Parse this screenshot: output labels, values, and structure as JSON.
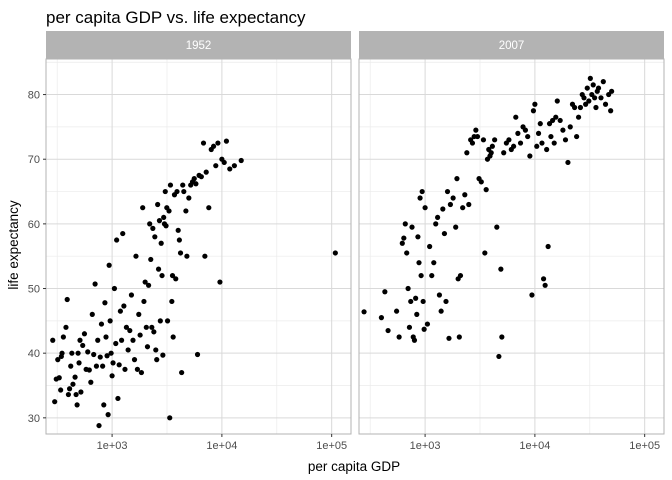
{
  "chart_data": {
    "type": "scatter",
    "title": "per capita GDP vs. life expectancy",
    "xlabel": "per capita GDP",
    "ylabel": "life expectancy",
    "x_scale": "log10",
    "xlim": [
      250,
      150000
    ],
    "ylim": [
      27.5,
      85.5
    ],
    "x_ticks": [
      1000,
      10000,
      100000
    ],
    "x_tick_labels": [
      "1e+03",
      "1e+04",
      "1e+05"
    ],
    "y_ticks": [
      30,
      40,
      50,
      60,
      70,
      80
    ],
    "y_tick_labels": [
      "30",
      "40",
      "50",
      "60",
      "70",
      "80"
    ],
    "grid": true,
    "point_color": "#000000",
    "panels": [
      {
        "name": "1952",
        "points": [
          [
            288,
            42.0
          ],
          [
            300,
            32.5
          ],
          [
            310,
            36.0
          ],
          [
            320,
            39.0
          ],
          [
            330,
            36.2
          ],
          [
            340,
            34.3
          ],
          [
            345,
            39.5
          ],
          [
            350,
            40.0
          ],
          [
            360,
            42.5
          ],
          [
            380,
            44.0
          ],
          [
            390,
            48.3
          ],
          [
            400,
            33.6
          ],
          [
            410,
            34.5
          ],
          [
            420,
            38.0
          ],
          [
            430,
            40.0
          ],
          [
            440,
            35.2
          ],
          [
            460,
            36.3
          ],
          [
            470,
            33.6
          ],
          [
            480,
            32.0
          ],
          [
            490,
            40.0
          ],
          [
            500,
            38.5
          ],
          [
            510,
            42.0
          ],
          [
            520,
            34.0
          ],
          [
            540,
            41.2
          ],
          [
            560,
            43.0
          ],
          [
            580,
            37.5
          ],
          [
            600,
            40.2
          ],
          [
            620,
            37.4
          ],
          [
            640,
            35.5
          ],
          [
            660,
            46.0
          ],
          [
            680,
            39.8
          ],
          [
            700,
            50.7
          ],
          [
            720,
            38.0
          ],
          [
            740,
            42.0
          ],
          [
            760,
            28.8
          ],
          [
            780,
            39.4
          ],
          [
            800,
            44.5
          ],
          [
            820,
            38.0
          ],
          [
            840,
            32.0
          ],
          [
            860,
            47.8
          ],
          [
            880,
            42.5
          ],
          [
            900,
            39.6
          ],
          [
            920,
            30.5
          ],
          [
            940,
            53.6
          ],
          [
            960,
            45.0
          ],
          [
            980,
            40.0
          ],
          [
            1000,
            36.5
          ],
          [
            1020,
            38.5
          ],
          [
            1050,
            50.0
          ],
          [
            1080,
            41.5
          ],
          [
            1100,
            57.5
          ],
          [
            1130,
            33.0
          ],
          [
            1160,
            38.2
          ],
          [
            1190,
            46.5
          ],
          [
            1220,
            42.0
          ],
          [
            1250,
            58.5
          ],
          [
            1280,
            47.3
          ],
          [
            1310,
            37.5
          ],
          [
            1350,
            44.0
          ],
          [
            1400,
            40.5
          ],
          [
            1450,
            43.5
          ],
          [
            1500,
            49.0
          ],
          [
            1550,
            42.0
          ],
          [
            1600,
            39.0
          ],
          [
            1650,
            55.0
          ],
          [
            1700,
            37.5
          ],
          [
            1750,
            46.0
          ],
          [
            1800,
            42.8
          ],
          [
            1850,
            37.0
          ],
          [
            1900,
            62.5
          ],
          [
            1950,
            48.0
          ],
          [
            2000,
            51.0
          ],
          [
            2050,
            44.0
          ],
          [
            2100,
            41.0
          ],
          [
            2150,
            50.5
          ],
          [
            2200,
            60.0
          ],
          [
            2250,
            54.5
          ],
          [
            2300,
            44.0
          ],
          [
            2350,
            59.3
          ],
          [
            2400,
            43.3
          ],
          [
            2450,
            58.0
          ],
          [
            2500,
            40.5
          ],
          [
            2550,
            39.0
          ],
          [
            2600,
            63.0
          ],
          [
            2650,
            53.0
          ],
          [
            2700,
            60.5
          ],
          [
            2750,
            45.0
          ],
          [
            2800,
            57.0
          ],
          [
            2850,
            52.0
          ],
          [
            2900,
            39.7
          ],
          [
            2950,
            61.0
          ],
          [
            3000,
            60.0
          ],
          [
            3050,
            65.0
          ],
          [
            3100,
            59.7
          ],
          [
            3150,
            62.5
          ],
          [
            3200,
            45.0
          ],
          [
            3300,
            62.0
          ],
          [
            3350,
            30.0
          ],
          [
            3400,
            66.0
          ],
          [
            3500,
            48.0
          ],
          [
            3550,
            52.0
          ],
          [
            3600,
            42.5
          ],
          [
            3700,
            64.5
          ],
          [
            3800,
            51.5
          ],
          [
            3900,
            65.0
          ],
          [
            4000,
            59.0
          ],
          [
            4100,
            57.5
          ],
          [
            4200,
            55.5
          ],
          [
            4300,
            37.0
          ],
          [
            4400,
            66.0
          ],
          [
            4500,
            65.0
          ],
          [
            4700,
            62.0
          ],
          [
            4800,
            55.0
          ],
          [
            5000,
            64.0
          ],
          [
            5200,
            66.0
          ],
          [
            5400,
            66.5
          ],
          [
            5600,
            67.0
          ],
          [
            5800,
            66.2
          ],
          [
            6000,
            39.8
          ],
          [
            6200,
            67.5
          ],
          [
            6500,
            67.3
          ],
          [
            6800,
            72.5
          ],
          [
            7000,
            55.0
          ],
          [
            7200,
            68.0
          ],
          [
            7600,
            62.5
          ],
          [
            8000,
            71.5
          ],
          [
            8400,
            72.0
          ],
          [
            8800,
            69.0
          ],
          [
            9200,
            72.5
          ],
          [
            9600,
            51.0
          ],
          [
            10000,
            70.0
          ],
          [
            10500,
            69.5
          ],
          [
            11000,
            72.8
          ],
          [
            11800,
            68.5
          ],
          [
            13000,
            69.0
          ],
          [
            15000,
            69.8
          ],
          [
            108000,
            55.5
          ]
        ]
      },
      {
        "name": "2007",
        "points": [
          [
            278,
            46.4
          ],
          [
            400,
            45.5
          ],
          [
            430,
            49.5
          ],
          [
            460,
            43.5
          ],
          [
            550,
            46.5
          ],
          [
            580,
            42.5
          ],
          [
            620,
            57.0
          ],
          [
            640,
            57.8
          ],
          [
            660,
            60.0
          ],
          [
            680,
            55.5
          ],
          [
            700,
            50.0
          ],
          [
            720,
            44.0
          ],
          [
            740,
            48.0
          ],
          [
            760,
            59.5
          ],
          [
            780,
            42.5
          ],
          [
            800,
            42.0
          ],
          [
            820,
            48.5
          ],
          [
            840,
            46.0
          ],
          [
            860,
            58.0
          ],
          [
            880,
            54.0
          ],
          [
            900,
            64.0
          ],
          [
            920,
            52.0
          ],
          [
            940,
            65.0
          ],
          [
            960,
            48.0
          ],
          [
            980,
            43.7
          ],
          [
            1000,
            62.5
          ],
          [
            1050,
            44.5
          ],
          [
            1100,
            56.5
          ],
          [
            1150,
            52.0
          ],
          [
            1200,
            54.0
          ],
          [
            1250,
            60.0
          ],
          [
            1300,
            61.0
          ],
          [
            1350,
            49.0
          ],
          [
            1400,
            46.5
          ],
          [
            1450,
            62.3
          ],
          [
            1500,
            58.5
          ],
          [
            1550,
            48.0
          ],
          [
            1600,
            65.0
          ],
          [
            1650,
            42.3
          ],
          [
            1700,
            63.0
          ],
          [
            1800,
            64.0
          ],
          [
            1900,
            59.5
          ],
          [
            1950,
            67.0
          ],
          [
            2000,
            51.5
          ],
          [
            2050,
            42.5
          ],
          [
            2100,
            52.0
          ],
          [
            2200,
            62.5
          ],
          [
            2300,
            64.5
          ],
          [
            2400,
            71.0
          ],
          [
            2500,
            63.0
          ],
          [
            2600,
            73.0
          ],
          [
            2700,
            72.5
          ],
          [
            2800,
            73.5
          ],
          [
            2900,
            74.5
          ],
          [
            3000,
            73.5
          ],
          [
            3100,
            67.0
          ],
          [
            3250,
            66.5
          ],
          [
            3400,
            73.0
          ],
          [
            3500,
            55.5
          ],
          [
            3600,
            65.3
          ],
          [
            3700,
            70.0
          ],
          [
            3800,
            71.5
          ],
          [
            3900,
            70.5
          ],
          [
            4000,
            71.0
          ],
          [
            4100,
            72.0
          ],
          [
            4300,
            73.0
          ],
          [
            4500,
            59.5
          ],
          [
            4700,
            39.5
          ],
          [
            4900,
            53.0
          ],
          [
            5000,
            42.5
          ],
          [
            5200,
            71.0
          ],
          [
            5500,
            72.5
          ],
          [
            5800,
            73.0
          ],
          [
            6100,
            71.5
          ],
          [
            6400,
            72.0
          ],
          [
            6700,
            76.5
          ],
          [
            7000,
            74.0
          ],
          [
            7400,
            72.5
          ],
          [
            7800,
            75.0
          ],
          [
            8200,
            74.5
          ],
          [
            8600,
            73.5
          ],
          [
            9000,
            70.5
          ],
          [
            9400,
            49.0
          ],
          [
            9700,
            77.5
          ],
          [
            10000,
            78.5
          ],
          [
            10400,
            72.0
          ],
          [
            10800,
            74.0
          ],
          [
            11200,
            75.5
          ],
          [
            11600,
            72.5
          ],
          [
            12000,
            51.5
          ],
          [
            12400,
            50.5
          ],
          [
            12800,
            71.5
          ],
          [
            13200,
            56.5
          ],
          [
            13600,
            75.5
          ],
          [
            14000,
            73.5
          ],
          [
            14500,
            76.0
          ],
          [
            15000,
            72.5
          ],
          [
            15500,
            76.5
          ],
          [
            16000,
            79.0
          ],
          [
            17000,
            76.0
          ],
          [
            18000,
            74.5
          ],
          [
            19000,
            73.0
          ],
          [
            20000,
            69.5
          ],
          [
            21000,
            75.0
          ],
          [
            22000,
            78.5
          ],
          [
            23000,
            78.0
          ],
          [
            24000,
            73.5
          ],
          [
            25000,
            76.5
          ],
          [
            26000,
            78.0
          ],
          [
            27000,
            80.0
          ],
          [
            28000,
            79.5
          ],
          [
            29000,
            78.5
          ],
          [
            30000,
            81.0
          ],
          [
            31000,
            79.0
          ],
          [
            32000,
            82.5
          ],
          [
            33000,
            80.0
          ],
          [
            34000,
            81.5
          ],
          [
            35000,
            79.5
          ],
          [
            36000,
            78.0
          ],
          [
            37000,
            80.5
          ],
          [
            38000,
            81.0
          ],
          [
            40000,
            79.5
          ],
          [
            42000,
            82.0
          ],
          [
            44000,
            78.5
          ],
          [
            47000,
            80.0
          ],
          [
            49000,
            77.5
          ],
          [
            50000,
            80.5
          ]
        ]
      }
    ]
  }
}
